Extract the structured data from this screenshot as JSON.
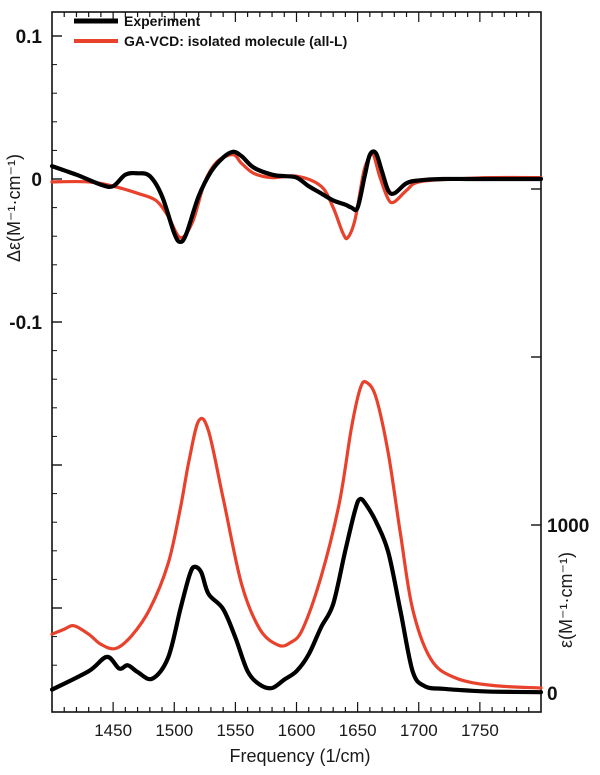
{
  "chart_data": {
    "type": "line",
    "title": "",
    "xlabel": "Frequency (1/cm)",
    "ylabel_left": "Δε(M⁻¹·cm⁻¹)",
    "ylabel_right": "ε(M⁻¹·cm⁻¹)",
    "xlim": [
      1400,
      1800
    ],
    "x_ticks": [
      1450,
      1500,
      1550,
      1600,
      1650,
      1700,
      1750
    ],
    "x_tick_labels": [
      "1450",
      "1500",
      "1550",
      "1600",
      "1650",
      "1700",
      "1750"
    ],
    "left_ticks": [
      0.1,
      0,
      -0.1
    ],
    "left_tick_labels": [
      "0.1",
      "0",
      "-0.1"
    ],
    "right_ticks": [
      1000,
      0
    ],
    "right_tick_labels": [
      "1000",
      "0"
    ],
    "legend": [
      {
        "name": "Experiment",
        "color": "#000000"
      },
      {
        "name": "GA-VCD: isolated molecule (all-L)",
        "color": "#e8412c"
      }
    ],
    "legend_position": "top-left",
    "vcd_series": [
      {
        "name": "Experiment",
        "color": "#000000",
        "x": [
          1400,
          1420,
          1440,
          1450,
          1460,
          1470,
          1480,
          1490,
          1500,
          1505,
          1510,
          1520,
          1530,
          1540,
          1548,
          1555,
          1565,
          1580,
          1590,
          1600,
          1610,
          1620,
          1630,
          1640,
          1645,
          1650,
          1656,
          1660,
          1665,
          1670,
          1675,
          1680,
          1690,
          1700,
          1720,
          1740,
          1760,
          1780,
          1800
        ],
        "y": [
          0.009,
          0.003,
          -0.004,
          -0.005,
          0.003,
          0.004,
          0.002,
          -0.012,
          -0.038,
          -0.044,
          -0.038,
          -0.012,
          0.005,
          0.015,
          0.019,
          0.016,
          0.008,
          0.003,
          0.002,
          0.001,
          -0.005,
          -0.01,
          -0.015,
          -0.018,
          -0.02,
          -0.02,
          0.003,
          0.017,
          0.018,
          0.005,
          -0.008,
          -0.01,
          -0.003,
          -0.001,
          0.0,
          0.0,
          0.0,
          0.0,
          0.0
        ]
      },
      {
        "name": "GA-VCD: isolated molecule (all-L)",
        "color": "#e8412c",
        "x": [
          1400,
          1430,
          1450,
          1470,
          1485,
          1495,
          1505,
          1515,
          1525,
          1535,
          1548,
          1555,
          1565,
          1580,
          1600,
          1620,
          1630,
          1638,
          1642,
          1648,
          1655,
          1660,
          1663,
          1668,
          1675,
          1680,
          1690,
          1700,
          1730,
          1760,
          1800
        ],
        "y": [
          -0.002,
          -0.002,
          -0.005,
          -0.01,
          -0.015,
          -0.026,
          -0.041,
          -0.03,
          -0.002,
          0.012,
          0.017,
          0.011,
          0.004,
          0.001,
          0.002,
          -0.005,
          -0.02,
          -0.038,
          -0.041,
          -0.028,
          0.005,
          0.016,
          0.017,
          0.002,
          -0.014,
          -0.016,
          -0.008,
          -0.002,
          0.0,
          0.001,
          0.001
        ]
      }
    ],
    "ir_series": [
      {
        "name": "Experiment",
        "color": "#000000",
        "x": [
          1400,
          1430,
          1445,
          1455,
          1462,
          1470,
          1482,
          1495,
          1505,
          1512,
          1516,
          1522,
          1528,
          1540,
          1550,
          1560,
          1570,
          1580,
          1590,
          1600,
          1610,
          1620,
          1630,
          1640,
          1648,
          1652,
          1657,
          1665,
          1675,
          1685,
          1695,
          1705,
          1720,
          1740,
          1760,
          1800
        ],
        "y": [
          20,
          130,
          215,
          145,
          165,
          125,
          85,
          210,
          500,
          690,
          750,
          720,
          590,
          500,
          330,
          130,
          50,
          30,
          80,
          130,
          230,
          390,
          530,
          850,
          1090,
          1155,
          1120,
          1020,
          840,
          490,
          130,
          40,
          25,
          15,
          8,
          5
        ]
      },
      {
        "name": "GA-VCD: isolated molecule (all-L)",
        "color": "#e8412c",
        "x": [
          1400,
          1410,
          1418,
          1430,
          1440,
          1452,
          1465,
          1480,
          1495,
          1505,
          1512,
          1520,
          1528,
          1540,
          1555,
          1570,
          1585,
          1595,
          1605,
          1620,
          1635,
          1645,
          1652,
          1657,
          1665,
          1675,
          1685,
          1695,
          1710,
          1730,
          1760,
          1800
        ],
        "y": [
          350,
          380,
          400,
          350,
          290,
          265,
          340,
          500,
          770,
          1100,
          1380,
          1620,
          1560,
          1160,
          650,
          380,
          285,
          300,
          380,
          690,
          1130,
          1580,
          1810,
          1850,
          1760,
          1430,
          950,
          500,
          200,
          90,
          45,
          30
        ]
      }
    ]
  }
}
